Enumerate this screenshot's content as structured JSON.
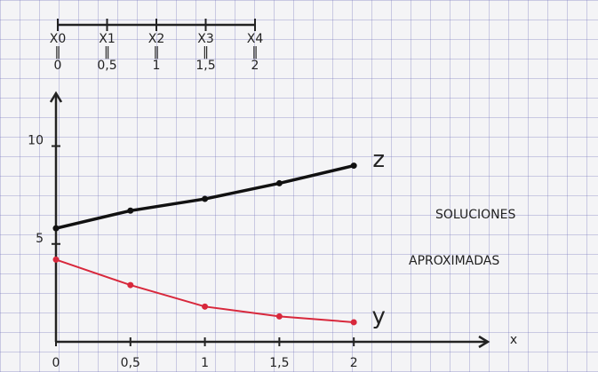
{
  "chart_data": {
    "type": "line",
    "x": [
      0,
      0.5,
      1,
      1.5,
      2
    ],
    "series": [
      {
        "name": "z",
        "color": "#111111",
        "values": [
          5.8,
          6.7,
          7.3,
          8.1,
          9.0
        ]
      },
      {
        "name": "y",
        "color": "#d8283c",
        "values": [
          4.2,
          2.9,
          1.8,
          1.3,
          1.0
        ]
      }
    ],
    "xlim": [
      0,
      2.9
    ],
    "ylim": [
      0,
      12.7
    ],
    "xticks": [
      0,
      {
        "value": 0.5,
        "label": "0,5"
      },
      1,
      {
        "value": 1.5,
        "label": "1,5"
      },
      2
    ],
    "yticks": [
      5,
      10
    ],
    "xlabel": "x",
    "annotations": [
      "SOLUCIONES",
      "APROXIMADAS"
    ],
    "number_line": {
      "points": [
        "X0",
        "X1",
        "X2",
        "X3",
        "X4"
      ],
      "ticks": [
        0,
        {
          "value": 0.5,
          "label": "0,5"
        },
        1,
        {
          "value": 1.5,
          "label": "1,5"
        },
        2
      ]
    }
  }
}
